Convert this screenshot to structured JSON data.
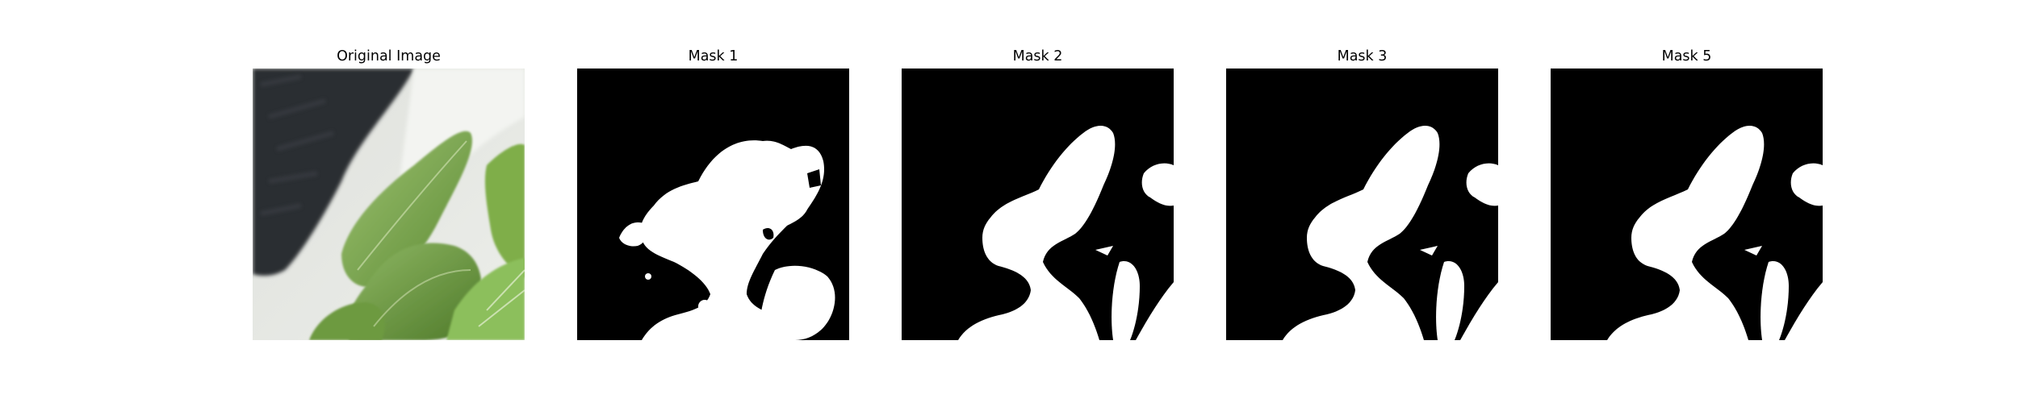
{
  "panels": [
    {
      "title": "Original Image",
      "kind": "photo"
    },
    {
      "title": "Mask 1",
      "kind": "mask"
    },
    {
      "title": "Mask 2",
      "kind": "mask"
    },
    {
      "title": "Mask 3",
      "kind": "mask"
    },
    {
      "title": "Mask 5",
      "kind": "mask"
    }
  ],
  "colors": {
    "background": "#ffffff",
    "mask_background": "#000000",
    "mask_foreground": "#ffffff",
    "leaf_green": "#7fa854",
    "pot_dark": "#2b2d31"
  }
}
